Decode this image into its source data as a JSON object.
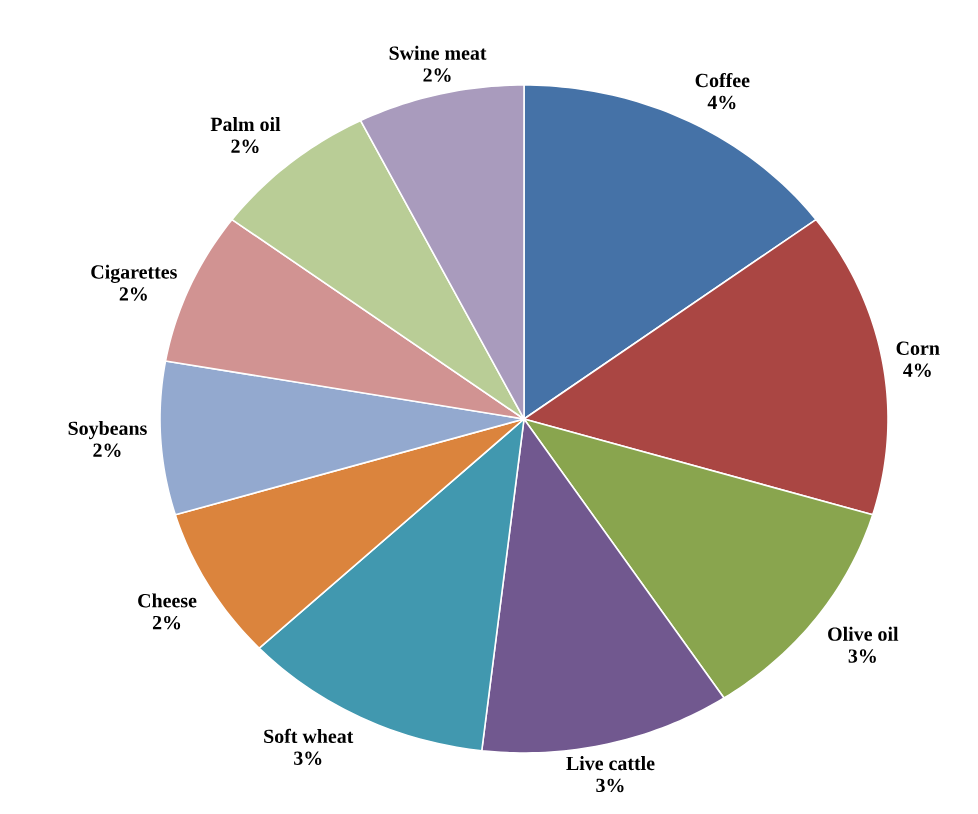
{
  "chart_data": {
    "type": "pie",
    "categories": [
      "Coffee",
      "Corn",
      "Olive oil",
      "Live cattle",
      "Soft wheat",
      "Cheese",
      "Soybeans",
      "Cigarettes",
      "Palm oil",
      "Swine meat"
    ],
    "values": [
      4,
      4,
      3,
      3,
      3,
      2,
      2,
      2,
      2,
      2
    ],
    "value_labels": [
      "4%",
      "4%",
      "3%",
      "3%",
      "3%",
      "2%",
      "2%",
      "2%",
      "2%",
      "2%"
    ],
    "colors": [
      "#4572a7",
      "#aa4643",
      "#89a54e",
      "#71588f",
      "#4198af",
      "#db843d",
      "#93a9cf",
      "#d19392",
      "#b9cd96",
      "#a99bbd"
    ]
  }
}
